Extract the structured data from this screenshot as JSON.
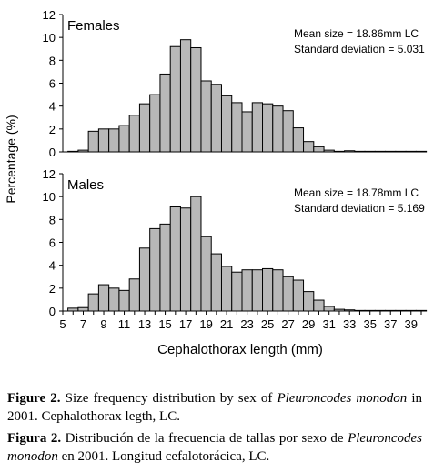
{
  "chart_data": [
    {
      "type": "bar",
      "panel_label": "Females",
      "annotation_lines": [
        "Mean size = 18.86mm LC",
        "Standard deviation = 5.031"
      ],
      "x": [
        6,
        7,
        8,
        9,
        10,
        11,
        12,
        13,
        14,
        15,
        16,
        17,
        18,
        19,
        20,
        21,
        22,
        23,
        24,
        25,
        26,
        27,
        28,
        29,
        30,
        31,
        32,
        33,
        34,
        35,
        36,
        37,
        38,
        39,
        40
      ],
      "values": [
        0.05,
        0.15,
        1.8,
        2.0,
        2.0,
        2.3,
        3.2,
        4.2,
        5.0,
        6.8,
        9.2,
        9.8,
        9.1,
        6.2,
        5.9,
        4.9,
        4.3,
        3.5,
        4.3,
        4.2,
        4.0,
        3.6,
        2.1,
        0.9,
        0.45,
        0.15,
        0.05,
        0.1,
        0.05,
        0.05,
        0.05,
        0.05,
        0.05,
        0.05,
        0.05
      ],
      "ylim": [
        0,
        12
      ],
      "yticks": [
        0,
        2,
        4,
        6,
        8,
        10,
        12
      ]
    },
    {
      "type": "bar",
      "panel_label": "Males",
      "annotation_lines": [
        "Mean size = 18.78mm LC",
        "Standard deviation = 5.169"
      ],
      "x": [
        6,
        7,
        8,
        9,
        10,
        11,
        12,
        13,
        14,
        15,
        16,
        17,
        18,
        19,
        20,
        21,
        22,
        23,
        24,
        25,
        26,
        27,
        28,
        29,
        30,
        31,
        32,
        33,
        34,
        35,
        36,
        37,
        38,
        39,
        40
      ],
      "values": [
        0.25,
        0.3,
        1.5,
        2.3,
        2.0,
        1.8,
        2.8,
        5.5,
        7.2,
        7.6,
        9.1,
        9.0,
        10.0,
        6.5,
        5.0,
        3.9,
        3.4,
        3.6,
        3.6,
        3.7,
        3.6,
        3.0,
        2.7,
        1.7,
        0.95,
        0.4,
        0.15,
        0.1,
        0.05,
        0.05,
        0.05,
        0.05,
        0.05,
        0.05,
        0.05
      ],
      "ylim": [
        0,
        12
      ],
      "yticks": [
        0,
        2,
        4,
        6,
        8,
        10,
        12
      ]
    }
  ],
  "axes": {
    "ylabel": "Percentage (%)",
    "xlabel": "Cephalothorax length (mm)",
    "xlim": [
      5,
      40
    ],
    "xticks": [
      5,
      7,
      9,
      11,
      13,
      15,
      17,
      19,
      21,
      23,
      25,
      27,
      29,
      31,
      33,
      35,
      37,
      39
    ]
  },
  "caption_en": {
    "label": "Figure 2.",
    "text1": " Size frequency distribution by sex of ",
    "species": "Pleuroncodes monodon",
    "text2": " in 2001. Cephalothorax legth, LC."
  },
  "caption_es": {
    "label": "Figura 2.",
    "text1": " Distribución de la frecuencia de tallas por sexo de ",
    "species": "Pleuroncodes monodon",
    "text2": " en 2001. Longitud cefalotorácica, LC."
  }
}
